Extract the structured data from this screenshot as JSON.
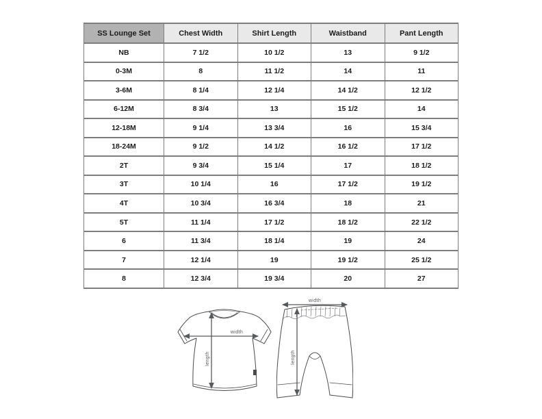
{
  "colors": {
    "header_fill": "#b2b2b2",
    "subheader_fill": "#e9e9e9",
    "border": "#7d7d7d",
    "text": "#1b1b1b",
    "line_art": "#4b4b4d",
    "arrow": "#58595b"
  },
  "chart_data": {
    "type": "table",
    "title": "SS Lounge Set",
    "columns": [
      "SS Lounge Set",
      "Chest Width",
      "Shirt Length",
      "Waistband",
      "Pant Length"
    ],
    "rows": [
      [
        "NB",
        "7 1/2",
        "10 1/2",
        "13",
        "9 1/2"
      ],
      [
        "0-3M",
        "8",
        "11 1/2",
        "14",
        "11"
      ],
      [
        "3-6M",
        "8 1/4",
        "12 1/4",
        "14 1/2",
        "12 1/2"
      ],
      [
        "6-12M",
        "8 3/4",
        "13",
        "15 1/2",
        "14"
      ],
      [
        "12-18M",
        "9 1/4",
        "13 3/4",
        "16",
        "15 3/4"
      ],
      [
        "18-24M",
        "9 1/2",
        "14 1/2",
        "16 1/2",
        "17 1/2"
      ],
      [
        "2T",
        "9 3/4",
        "15 1/4",
        "17",
        "18 1/2"
      ],
      [
        "3T",
        "10 1/4",
        "16",
        "17 1/2",
        "19 1/2"
      ],
      [
        "4T",
        "10 3/4",
        "16 3/4",
        "18",
        "21"
      ],
      [
        "5T",
        "11 1/4",
        "17 1/2",
        "18 1/2",
        "22 1/2"
      ],
      [
        "6",
        "11 3/4",
        "18 1/4",
        "19",
        "24"
      ],
      [
        "7",
        "12 1/4",
        "19",
        "19 1/2",
        "25 1/2"
      ],
      [
        "8",
        "12 3/4",
        "19 3/4",
        "20",
        "27"
      ]
    ]
  },
  "diagrams": {
    "shirt": {
      "width_label": "width",
      "length_label": "length"
    },
    "pants": {
      "width_label": "width",
      "length_label": "length"
    }
  }
}
